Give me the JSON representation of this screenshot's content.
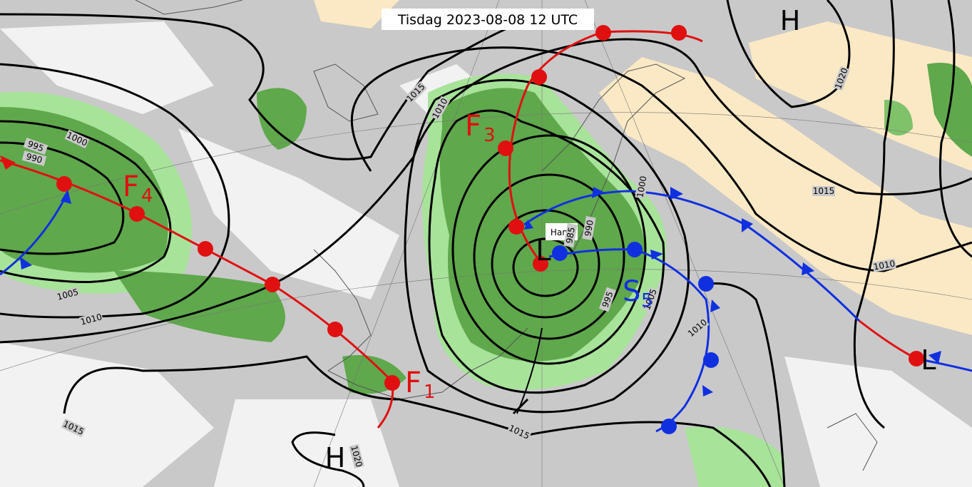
{
  "header": {
    "title": "Tisdag 2023-08-08 12 UTC"
  },
  "pressure_centers": [
    {
      "label": "H"
    },
    {
      "label": "L"
    },
    {
      "label": "L"
    },
    {
      "label": "H"
    }
  ],
  "fronts": [
    {
      "letter": "F",
      "index": "1"
    },
    {
      "letter": "F",
      "index": "3"
    },
    {
      "letter": "F",
      "index": "4"
    },
    {
      "letter": "S",
      "index": "5"
    }
  ],
  "storm": {
    "name": "Hans"
  },
  "isobar_labels": [
    "1015",
    "1010",
    "1000",
    "995",
    "990",
    "1005",
    "1010",
    "1015",
    "1015",
    "1020",
    "1015",
    "1010",
    "1010",
    "1005",
    "995",
    "985",
    "990",
    "1000",
    "1020"
  ]
}
